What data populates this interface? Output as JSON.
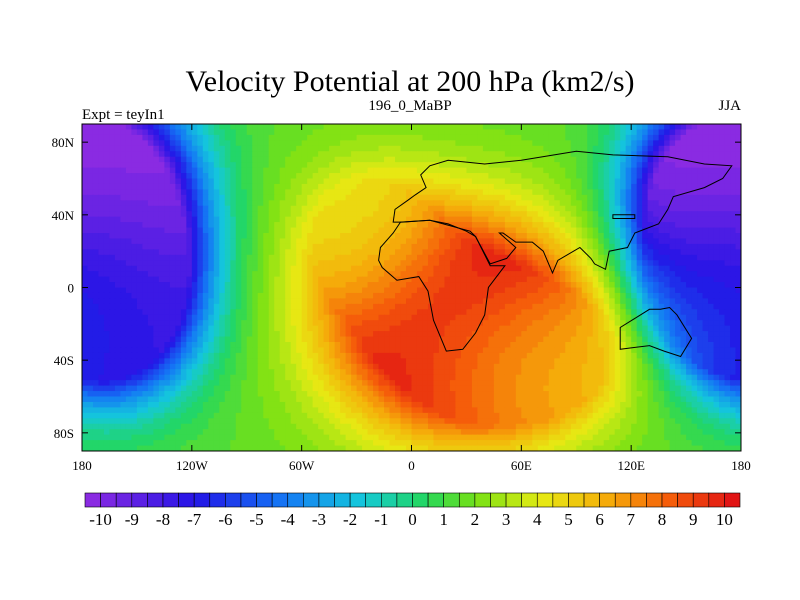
{
  "chart_data": {
    "type": "heatmap",
    "title": "Velocity Potential at 200 hPa (km2/s)",
    "left_label": "Expt = teyIn1",
    "center_label": "196_0_MaBP",
    "right_label": "JJA",
    "x_range": [
      -180,
      180
    ],
    "y_range": [
      -90,
      90
    ],
    "x_ticks": [
      {
        "value": -180,
        "label": "180"
      },
      {
        "value": -120,
        "label": "120W"
      },
      {
        "value": -60,
        "label": "60W"
      },
      {
        "value": 0,
        "label": "0"
      },
      {
        "value": 60,
        "label": "60E"
      },
      {
        "value": 120,
        "label": "120E"
      },
      {
        "value": 180,
        "label": "180"
      }
    ],
    "y_ticks": [
      {
        "value": 80,
        "label": "80N"
      },
      {
        "value": 40,
        "label": "40N"
      },
      {
        "value": 0,
        "label": "0"
      },
      {
        "value": -40,
        "label": "40S"
      },
      {
        "value": -80,
        "label": "80S"
      }
    ],
    "colorbar": {
      "min": -10.5,
      "max": 10.5,
      "step": 0.5,
      "labels": [
        "-10",
        "-9",
        "-8",
        "-7",
        "-6",
        "-5",
        "-4",
        "-3",
        "-2",
        "-1",
        "0",
        "1",
        "2",
        "3",
        "4",
        "5",
        "6",
        "7",
        "8",
        "9",
        "10"
      ],
      "label_values": [
        -10,
        -9,
        -8,
        -7,
        -6,
        -5,
        -4,
        -3,
        -2,
        -1,
        0,
        1,
        2,
        3,
        4,
        5,
        6,
        7,
        8,
        9,
        10
      ]
    },
    "field_centers": [
      {
        "lon": 25,
        "lat": -20,
        "value": 11.5,
        "sx": 48,
        "sy": 42
      },
      {
        "lon": 65,
        "lat": -40,
        "value": 4.0,
        "sx": 38,
        "sy": 28
      },
      {
        "lon": -25,
        "lat": 30,
        "value": 3.5,
        "sx": 30,
        "sy": 32
      },
      {
        "lon": -160,
        "lat": 45,
        "value": -10.5,
        "sx": 30,
        "sy": 40
      },
      {
        "lon": -165,
        "lat": -10,
        "value": -8.0,
        "sx": 32,
        "sy": 35
      },
      {
        "lon": 160,
        "lat": 50,
        "value": -10.5,
        "sx": 28,
        "sy": 35
      },
      {
        "lon": 175,
        "lat": 0,
        "value": -4.0,
        "sx": 30,
        "sy": 30
      }
    ],
    "land_outlines": [
      {
        "name": "africa",
        "points": [
          [
            -18,
            15
          ],
          [
            -17,
            22
          ],
          [
            -10,
            30
          ],
          [
            -6,
            36
          ],
          [
            10,
            37
          ],
          [
            32,
            31
          ],
          [
            35,
            28
          ],
          [
            43,
            12
          ],
          [
            51,
            12
          ],
          [
            42,
            0
          ],
          [
            40,
            -15
          ],
          [
            35,
            -25
          ],
          [
            28,
            -34
          ],
          [
            19,
            -35
          ],
          [
            12,
            -18
          ],
          [
            9,
            -2
          ],
          [
            4,
            6
          ],
          [
            -8,
            4
          ],
          [
            -16,
            11
          ]
        ]
      },
      {
        "name": "eurasia",
        "points": [
          [
            -10,
            36
          ],
          [
            -9,
            43
          ],
          [
            -2,
            48
          ],
          [
            2,
            51
          ],
          [
            8,
            55
          ],
          [
            5,
            62
          ],
          [
            10,
            67
          ],
          [
            20,
            70
          ],
          [
            40,
            68
          ],
          [
            60,
            70
          ],
          [
            90,
            75
          ],
          [
            110,
            73
          ],
          [
            140,
            72
          ],
          [
            160,
            68
          ],
          [
            175,
            67
          ],
          [
            170,
            60
          ],
          [
            160,
            55
          ],
          [
            143,
            50
          ],
          [
            140,
            43
          ],
          [
            135,
            35
          ],
          [
            122,
            30
          ],
          [
            118,
            22
          ],
          [
            108,
            20
          ],
          [
            106,
            10
          ],
          [
            100,
            13
          ],
          [
            98,
            16
          ],
          [
            92,
            22
          ],
          [
            80,
            15
          ],
          [
            77,
            8
          ],
          [
            72,
            20
          ],
          [
            66,
            25
          ],
          [
            57,
            25
          ],
          [
            50,
            30
          ],
          [
            48,
            30
          ],
          [
            57,
            22
          ],
          [
            52,
            16
          ],
          [
            43,
            13
          ],
          [
            35,
            28
          ],
          [
            30,
            31
          ],
          [
            20,
            35
          ],
          [
            10,
            37
          ],
          [
            -5,
            36
          ]
        ]
      },
      {
        "name": "australia",
        "points": [
          [
            114,
            -22
          ],
          [
            114,
            -34
          ],
          [
            130,
            -32
          ],
          [
            138,
            -35
          ],
          [
            147,
            -38
          ],
          [
            153,
            -28
          ],
          [
            145,
            -15
          ],
          [
            141,
            -11
          ],
          [
            136,
            -12
          ],
          [
            130,
            -12
          ],
          [
            122,
            -17
          ]
        ]
      },
      {
        "name": "arabia_gap",
        "points": [
          [
            110,
            40
          ],
          [
            122,
            40
          ],
          [
            122,
            38
          ],
          [
            110,
            38
          ]
        ]
      }
    ]
  }
}
